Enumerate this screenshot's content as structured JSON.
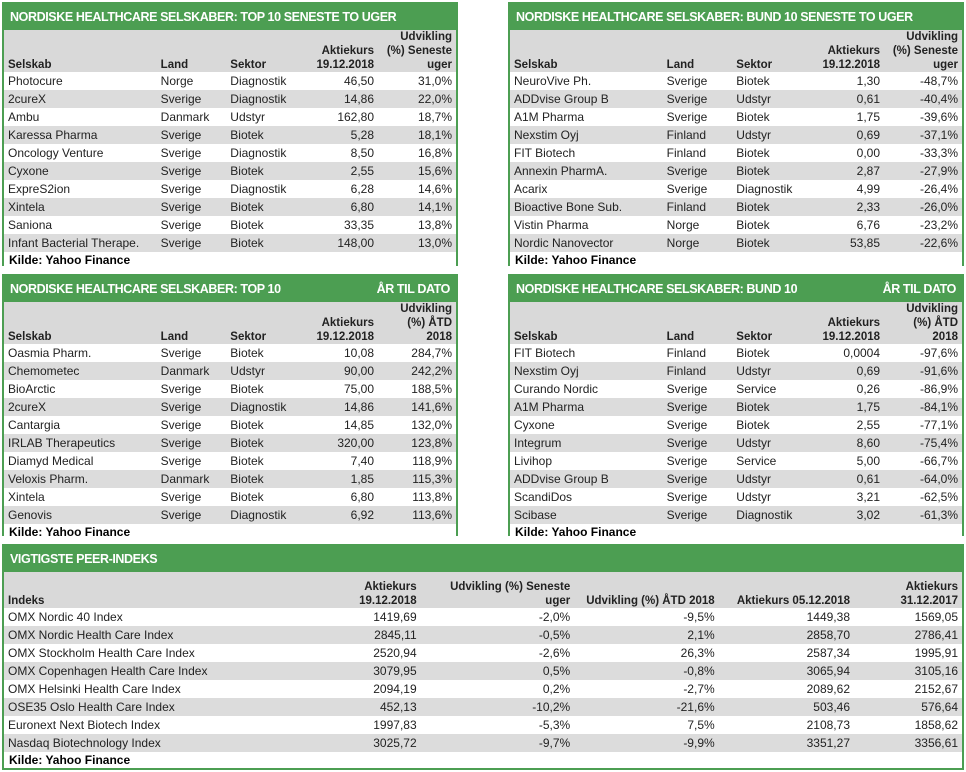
{
  "colors": {
    "accent": "#4c9e52",
    "alt_row": "#dcdcdc"
  },
  "source": "Kilde: Yahoo Finance",
  "panels": [
    {
      "title": "NORDISKE HEALTHCARE SELSKABER: TOP 10 SENESTE TO UGER",
      "title_right": "",
      "headers": [
        "Selskab",
        "Land",
        "Sektor",
        "Aktiekurs 19.12.2018",
        "Udvikling (%) Seneste uger"
      ],
      "rows": [
        [
          "Photocure",
          "Norge",
          "Diagnostik",
          "46,50",
          "31,0%"
        ],
        [
          "2cureX",
          "Sverige",
          "Diagnostik",
          "14,86",
          "22,0%"
        ],
        [
          "Ambu",
          "Danmark",
          "Udstyr",
          "162,80",
          "18,7%"
        ],
        [
          "Karessa Pharma",
          "Sverige",
          "Biotek",
          "5,28",
          "18,1%"
        ],
        [
          "Oncology Venture",
          "Sverige",
          "Diagnostik",
          "8,50",
          "16,8%"
        ],
        [
          "Cyxone",
          "Sverige",
          "Biotek",
          "2,55",
          "15,6%"
        ],
        [
          "ExpreS2ion",
          "Sverige",
          "Diagnostik",
          "6,28",
          "14,6%"
        ],
        [
          "Xintela",
          "Sverige",
          "Biotek",
          "6,80",
          "14,1%"
        ],
        [
          "Saniona",
          "Sverige",
          "Biotek",
          "33,35",
          "13,8%"
        ],
        [
          "Infant Bacterial Therape.",
          "Sverige",
          "Biotek",
          "148,00",
          "13,0%"
        ]
      ]
    },
    {
      "title": "NORDISKE HEALTHCARE SELSKABER: BUND 10 SENESTE TO UGER",
      "title_right": "",
      "headers": [
        "Selskab",
        "Land",
        "Sektor",
        "Aktiekurs 19.12.2018",
        "Udvikling (%) Seneste uger"
      ],
      "rows": [
        [
          "NeuroVive Ph.",
          "Sverige",
          "Biotek",
          "1,30",
          "-48,7%"
        ],
        [
          "ADDvise Group B",
          "Sverige",
          "Udstyr",
          "0,61",
          "-40,4%"
        ],
        [
          "A1M Pharma",
          "Sverige",
          "Biotek",
          "1,75",
          "-39,6%"
        ],
        [
          "Nexstim Oyj",
          "Finland",
          "Udstyr",
          "0,69",
          "-37,1%"
        ],
        [
          "FIT Biotech",
          "Finland",
          "Biotek",
          "0,00",
          "-33,3%"
        ],
        [
          "Annexin PharmA.",
          "Sverige",
          "Biotek",
          "2,87",
          "-27,9%"
        ],
        [
          "Acarix",
          "Sverige",
          "Diagnostik",
          "4,99",
          "-26,4%"
        ],
        [
          "Bioactive Bone Sub.",
          "Finland",
          "Biotek",
          "2,33",
          "-26,0%"
        ],
        [
          "Vistin Pharma",
          "Norge",
          "Biotek",
          "6,76",
          "-23,2%"
        ],
        [
          "Nordic Nanovector",
          "Norge",
          "Biotek",
          "53,85",
          "-22,6%"
        ]
      ]
    },
    {
      "title": "NORDISKE HEALTHCARE SELSKABER: TOP 10",
      "title_right": "ÅR TIL DATO",
      "headers": [
        "Selskab",
        "Land",
        "Sektor",
        "Aktiekurs 19.12.2018",
        "Udvikling (%) ÅTD 2018"
      ],
      "rows": [
        [
          "Oasmia Pharm.",
          "Sverige",
          "Biotek",
          "10,08",
          "284,7%"
        ],
        [
          "Chemometec",
          "Danmark",
          "Udstyr",
          "90,00",
          "242,2%"
        ],
        [
          "BioArctic",
          "Sverige",
          "Biotek",
          "75,00",
          "188,5%"
        ],
        [
          "2cureX",
          "Sverige",
          "Diagnostik",
          "14,86",
          "141,6%"
        ],
        [
          "Cantargia",
          "Sverige",
          "Biotek",
          "14,85",
          "132,0%"
        ],
        [
          "IRLAB Therapeutics",
          "Sverige",
          "Biotek",
          "320,00",
          "123,8%"
        ],
        [
          "Diamyd Medical",
          "Sverige",
          "Biotek",
          "7,40",
          "118,9%"
        ],
        [
          "Veloxis Pharm.",
          "Danmark",
          "Biotek",
          "1,85",
          "115,3%"
        ],
        [
          "Xintela",
          "Sverige",
          "Biotek",
          "6,80",
          "113,8%"
        ],
        [
          "Genovis",
          "Sverige",
          "Diagnostik",
          "6,92",
          "113,6%"
        ]
      ]
    },
    {
      "title": "NORDISKE HEALTHCARE SELSKABER: BUND 10",
      "title_right": "ÅR TIL DATO",
      "headers": [
        "Selskab",
        "Land",
        "Sektor",
        "Aktiekurs 19.12.2018",
        "Udvikling (%) ÅTD 2018"
      ],
      "rows": [
        [
          "FIT Biotech",
          "Finland",
          "Biotek",
          "0,0004",
          "-97,6%"
        ],
        [
          "Nexstim Oyj",
          "Finland",
          "Udstyr",
          "0,69",
          "-91,6%"
        ],
        [
          "Curando Nordic",
          "Sverige",
          "Service",
          "0,26",
          "-86,9%"
        ],
        [
          "A1M Pharma",
          "Sverige",
          "Biotek",
          "1,75",
          "-84,1%"
        ],
        [
          "Cyxone",
          "Sverige",
          "Biotek",
          "2,55",
          "-77,1%"
        ],
        [
          "Integrum",
          "Sverige",
          "Udstyr",
          "8,60",
          "-75,4%"
        ],
        [
          "Livihop",
          "Sverige",
          "Service",
          "5,00",
          "-66,7%"
        ],
        [
          "ADDvise Group B",
          "Sverige",
          "Udstyr",
          "0,61",
          "-64,0%"
        ],
        [
          "ScandiDos",
          "Sverige",
          "Udstyr",
          "3,21",
          "-62,5%"
        ],
        [
          "Scibase",
          "Sverige",
          "Diagnostik",
          "3,02",
          "-61,3%"
        ]
      ]
    },
    {
      "title": "VIGTIGSTE PEER-INDEKS",
      "title_right": "",
      "headers": [
        "Indeks",
        "Aktiekurs 19.12.2018",
        "Udvikling (%) Seneste uger",
        "Udvikling (%) ÅTD 2018",
        "Aktiekurs 05.12.2018",
        "Aktiekurs 31.12.2017"
      ],
      "rows": [
        [
          "OMX Nordic 40 Index",
          "1419,69",
          "-2,0%",
          "-9,5%",
          "1449,38",
          "1569,05"
        ],
        [
          "OMX Nordic Health Care Index",
          "2845,11",
          "-0,5%",
          "2,1%",
          "2858,70",
          "2786,41"
        ],
        [
          "OMX Stockholm Health Care Index",
          "2520,94",
          "-2,6%",
          "26,3%",
          "2587,34",
          "1995,91"
        ],
        [
          "OMX Copenhagen Health Care Index",
          "3079,95",
          "0,5%",
          "-0,8%",
          "3065,94",
          "3105,16"
        ],
        [
          "OMX Helsinki Health Care Index",
          "2094,19",
          "0,2%",
          "-2,7%",
          "2089,62",
          "2152,67"
        ],
        [
          "OSE35 Oslo Health Care Index",
          "452,13",
          "-10,2%",
          "-21,6%",
          "503,46",
          "576,64"
        ],
        [
          "Euronext Next Biotech Index",
          "1997,83",
          "-5,3%",
          "7,5%",
          "2108,73",
          "1858,62"
        ],
        [
          "Nasdaq Biotechnology Index",
          "3025,72",
          "-9,7%",
          "-9,9%",
          "3351,27",
          "3356,61"
        ]
      ]
    }
  ]
}
